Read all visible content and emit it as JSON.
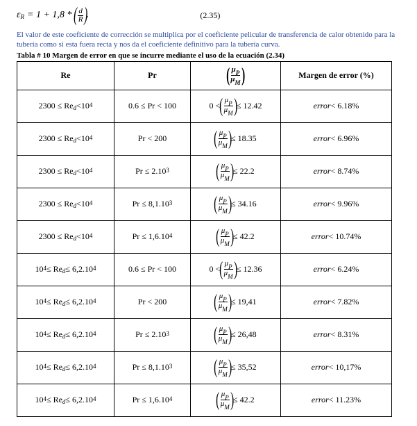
{
  "equation": {
    "lhs_symbol": "ε",
    "lhs_sub": "R",
    "eq": "= 1 + 1,8 *",
    "frac_num": "d",
    "frac_den": "R",
    "tail": ".",
    "number": "(2.35)"
  },
  "description": "El valor de este coeficiente de corrección se multiplica por el coeficiente pelicular de transferencia de calor obtenido para la tubería como si esta fuera recta y nos da el coeficiente definitivo para la tubería curva.",
  "table_title": "Tabla # 10 Margen de error en que se incurre mediante el uso de la ecuación (2.34)",
  "headers": {
    "re": "Re",
    "pr": "Pr",
    "ratio_num": "μ",
    "ratio_num_sub": "P",
    "ratio_den": "μ",
    "ratio_den_sub": "M",
    "err": "Margen de error (%)"
  },
  "rows": [
    {
      "re": {
        "lo": "2300",
        "sub": "d",
        "hiExp": "4"
      },
      "pr": {
        "pre": "0.6 ≤ Pr < 100"
      },
      "ratio": {
        "pre": "0 <",
        "val": "≤ 12.42"
      },
      "err": {
        "op": "<",
        "val": "6.18%"
      }
    },
    {
      "re": {
        "lo": "2300",
        "sub": "d",
        "hiExp": "4"
      },
      "pr": {
        "pre": "Pr < 200"
      },
      "ratio": {
        "val": "≤ 18.35"
      },
      "err": {
        "op": "<",
        "val": "6.96%"
      }
    },
    {
      "re": {
        "lo": "2300",
        "sub": "d",
        "hiExp": "4"
      },
      "pr": {
        "pre": "Pr ≤ 2.10",
        "exp": "3"
      },
      "ratio": {
        "val": "≤ 22.2"
      },
      "err": {
        "op": "<",
        "val": "8.74%"
      }
    },
    {
      "re": {
        "lo": "2300",
        "sub": "d",
        "hiExp": "4"
      },
      "pr": {
        "pre": "Pr ≤ 8,1.10",
        "exp": "3"
      },
      "ratio": {
        "val": "≤ 34.16"
      },
      "err": {
        "op": "<",
        "val": "9.96%"
      }
    },
    {
      "re": {
        "lo": "2300",
        "sub": "d",
        "hiExp": "4"
      },
      "pr": {
        "pre": "Pr ≤ 1,6.10",
        "exp": "4"
      },
      "ratio": {
        "val": "≤ 42.2"
      },
      "err": {
        "op": "<",
        "val": "10.74%"
      }
    },
    {
      "re": {
        "loExp": "4",
        "sub": "d",
        "hiMul": "6,2.10",
        "hiExp": "4"
      },
      "pr": {
        "pre": "0.6 ≤ Pr < 100"
      },
      "ratio": {
        "pre": "0 <",
        "val": "≤ 12.36"
      },
      "err": {
        "op": "<",
        "val": "6.24%"
      }
    },
    {
      "re": {
        "loExp": "4",
        "sub": "d",
        "hiMul": "6,2.10",
        "hiExp": "4"
      },
      "pr": {
        "pre": "Pr < 200"
      },
      "ratio": {
        "val": "≤ 19,41"
      },
      "err": {
        "op": "<",
        "val": "7.82%"
      }
    },
    {
      "re": {
        "loExp": "4",
        "sub": "d",
        "hiMul": "6,2.10",
        "hiExp": "4"
      },
      "pr": {
        "pre": "Pr ≤ 2.10",
        "exp": "3"
      },
      "ratio": {
        "val": "≤ 26,48"
      },
      "err": {
        "op": "<",
        "val": "8.31%"
      }
    },
    {
      "re": {
        "loExp": "4",
        "sub": "d",
        "hiMul": "6,2.10",
        "hiExp": "4"
      },
      "pr": {
        "pre": "Pr ≤ 8,1.10",
        "exp": "3"
      },
      "ratio": {
        "val": "≤ 35,52"
      },
      "err": {
        "op": " <",
        "val": "10,17%"
      }
    },
    {
      "re": {
        "loExp": "4",
        "sub": "d",
        "hiMul": "6,2.10",
        "hiExp": "4"
      },
      "pr": {
        "pre": "Pr ≤ 1,6.10",
        "exp": "4"
      },
      "ratio": {
        "val": "≤ 42.2"
      },
      "err": {
        "op": "<",
        "val": "11.23%"
      }
    }
  ]
}
